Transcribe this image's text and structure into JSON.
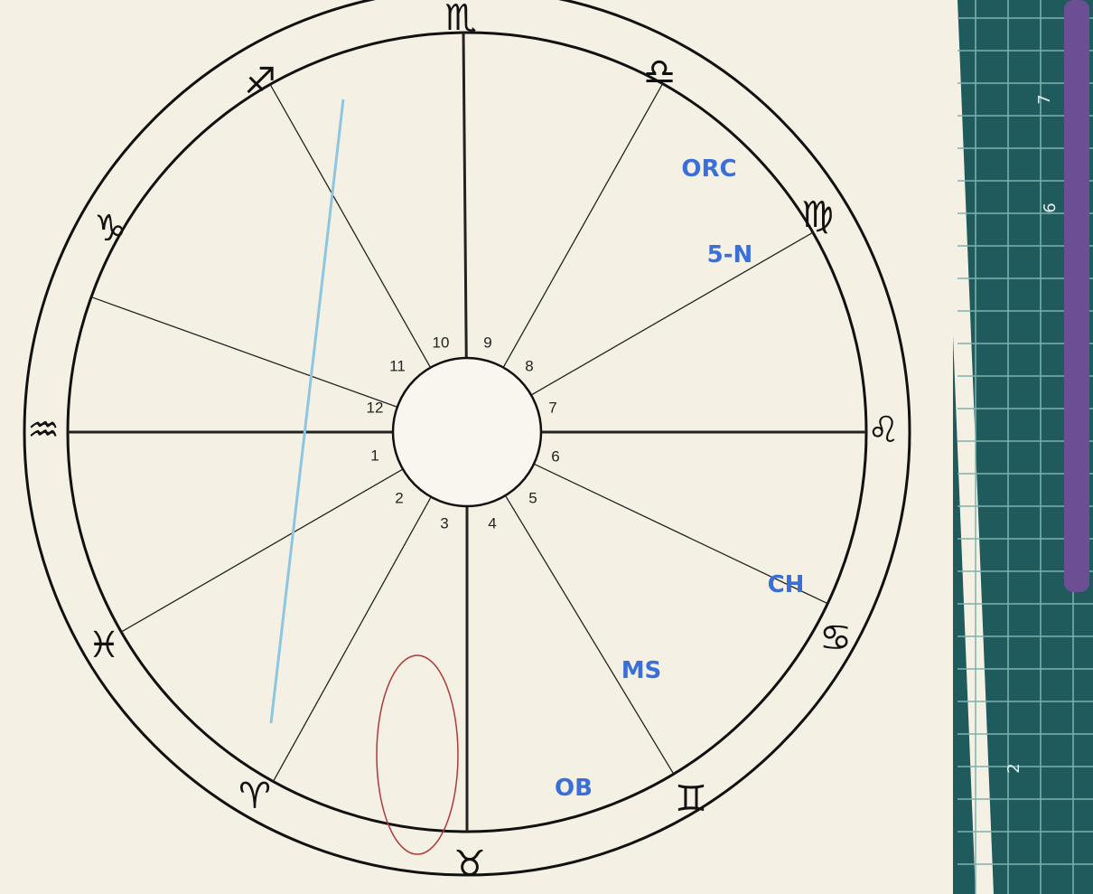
{
  "houses": [
    "1",
    "2",
    "3",
    "4",
    "5",
    "6",
    "7",
    "8",
    "9",
    "10",
    "11",
    "12"
  ],
  "cusp_signs": [
    "♏",
    "♎",
    "♍",
    "♌",
    "♋",
    "♊",
    "♉",
    "♈",
    "♓",
    "♒",
    "♑",
    "♐"
  ],
  "notes": [
    "5-N",
    "ORC",
    "MS",
    "CH",
    "OB"
  ],
  "ruler_numbers": [
    "7",
    "6",
    "2"
  ]
}
